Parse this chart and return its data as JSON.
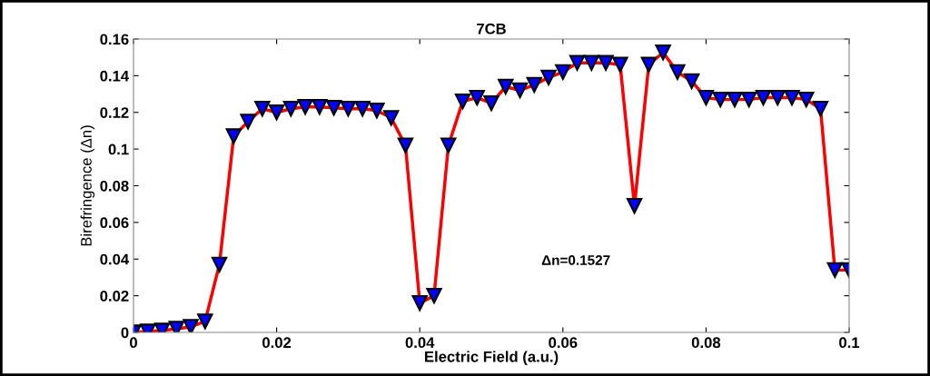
{
  "chart_data": {
    "type": "line",
    "title": "7CB",
    "xlabel": "Electric Field (a.u.)",
    "ylabel": "Birefringence (Δn)",
    "x": [
      0,
      0.002,
      0.004,
      0.006,
      0.008,
      0.01,
      0.012,
      0.014,
      0.016,
      0.018,
      0.02,
      0.022,
      0.024,
      0.026,
      0.028,
      0.03,
      0.032,
      0.034,
      0.036,
      0.038,
      0.04,
      0.042,
      0.044,
      0.046,
      0.048,
      0.05,
      0.052,
      0.054,
      0.056,
      0.058,
      0.06,
      0.062,
      0.064,
      0.066,
      0.068,
      0.07,
      0.072,
      0.074,
      0.076,
      0.078,
      0.08,
      0.082,
      0.084,
      0.086,
      0.088,
      0.09,
      0.092,
      0.094,
      0.096,
      0.098,
      0.1
    ],
    "series": [
      {
        "color": "#ff0000",
        "values": [
          0,
          0.0005,
          0.001,
          0.002,
          0.003,
          0.006,
          0.037,
          0.107,
          0.115,
          0.122,
          0.12,
          0.122,
          0.123,
          0.123,
          0.1225,
          0.122,
          0.122,
          0.121,
          0.117,
          0.102,
          0.016,
          0.02,
          0.102,
          0.126,
          0.128,
          0.125,
          0.134,
          0.132,
          0.135,
          0.139,
          0.142,
          0.147,
          0.147,
          0.147,
          0.146,
          0.069,
          0.146,
          0.1527,
          0.142,
          0.137,
          0.128,
          0.127,
          0.127,
          0.127,
          0.128,
          0.128,
          0.128,
          0.127,
          0.122,
          0.034,
          0.034
        ]
      }
    ],
    "xlim": [
      0,
      0.1
    ],
    "xticks": [
      0,
      0.02,
      0.04,
      0.06,
      0.08,
      0.1
    ],
    "ylim": [
      0,
      0.16
    ],
    "yticks": [
      0,
      0.02,
      0.04,
      0.06,
      0.08,
      0.1,
      0.12,
      0.14,
      0.16
    ],
    "annotations": [
      "Δn=0.1527"
    ],
    "marker": "triangle",
    "line_style": "solid",
    "grid": false,
    "legend": false
  }
}
